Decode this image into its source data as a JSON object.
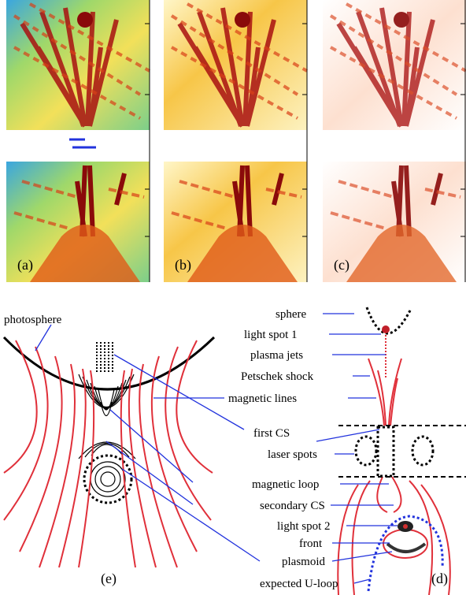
{
  "panel_labels": [
    "(a)",
    "(b)",
    "(c)",
    "(e)",
    "(d)"
  ],
  "labels": [
    "photosphere",
    "sphere",
    "light spot 1",
    "plasma jets",
    "Petschek shock",
    "magnetic lines",
    "first CS",
    "laser spots",
    "magnetic loop",
    "secondary CS",
    "light spot 2",
    "front",
    "plasmoid",
    "expected U-loop"
  ]
}
